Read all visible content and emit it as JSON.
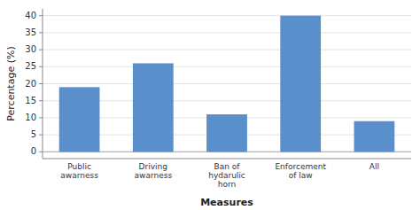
{
  "chart_data": {
    "type": "bar",
    "categories": [
      "Public\nawarness",
      "Driving\nawarness",
      "Ban of\nhydarulic\nhorn",
      "Enforcement\nof law",
      "All"
    ],
    "values": [
      19,
      26,
      11,
      40,
      9
    ],
    "color": "#5b8fcc",
    "xlabel": "Measures",
    "ylabel": "Percentage (%)",
    "ylim": [
      -2,
      42
    ],
    "yticks": [
      0,
      5,
      10,
      15,
      20,
      25,
      30,
      35,
      40
    ],
    "grid": true
  }
}
